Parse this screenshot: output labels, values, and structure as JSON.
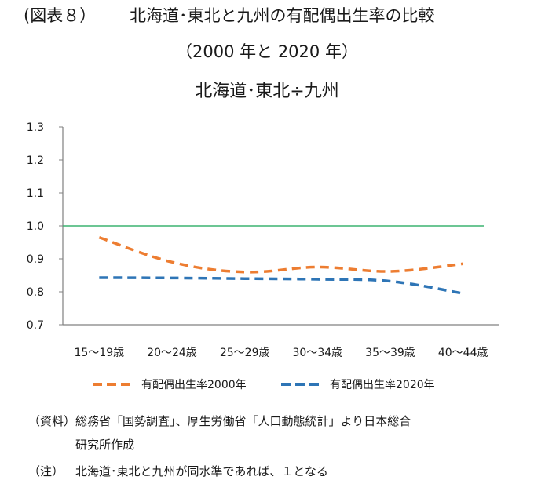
{
  "title": {
    "figure_no": "(図表８）",
    "main": "北海道･東北と九州の有配偶出生率の比較",
    "sub": "（2000 年と 2020 年）",
    "chart_title": "北海道･東北÷九州"
  },
  "chart_data": {
    "type": "line",
    "categories": [
      "15～19歳",
      "20～24歳",
      "25～29歳",
      "30～34歳",
      "35～39歳",
      "40～44歳"
    ],
    "series": [
      {
        "name": "有配偶出生率2000年",
        "color": "#ED7D31",
        "dash": true,
        "values": [
          0.965,
          0.89,
          0.86,
          0.875,
          0.862,
          0.885
        ]
      },
      {
        "name": "有配偶出生率2020年",
        "color": "#2E75B6",
        "dash": true,
        "values": [
          0.843,
          0.842,
          0.84,
          0.838,
          0.832,
          0.795
        ]
      }
    ],
    "reference_line": {
      "value": 1.0,
      "color": "#3CB371"
    },
    "ylim": [
      0.7,
      1.3
    ],
    "yticks": [
      "1.3",
      "1.2",
      "1.1",
      "1.0",
      "0.9",
      "0.8",
      "0.7"
    ],
    "grid": false,
    "legend_position": "bottom"
  },
  "notes": {
    "source_label": "（資料）",
    "source_text": "総務省「国勢調査」、厚生労働省「人口動態統計」より日本総合",
    "source_text_cont": "研究所作成",
    "note_label": "（注）",
    "note_text": "北海道･東北と九州が同水準であれば、１となる"
  }
}
